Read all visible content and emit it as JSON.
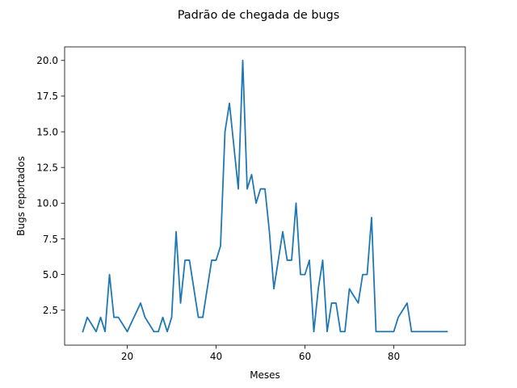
{
  "chart_data": {
    "type": "line",
    "title": "Padrão de chegada de bugs",
    "xlabel": "Meses",
    "ylabel": "Bugs reportados",
    "xlim": [
      5.9,
      96.1
    ],
    "ylim": [
      0.05,
      20.95
    ],
    "xticks": [
      20,
      40,
      60,
      80
    ],
    "xtick_labels": [
      "20",
      "40",
      "60",
      "80"
    ],
    "yticks": [
      2.5,
      5.0,
      7.5,
      10.0,
      12.5,
      15.0,
      17.5,
      20.0
    ],
    "ytick_labels": [
      "2.5",
      "5.0",
      "7.5",
      "10.0",
      "12.5",
      "15.0",
      "17.5",
      "20.0"
    ],
    "grid": false,
    "series": [
      {
        "color": "#1f77b4",
        "x": [
          10,
          11,
          12,
          13,
          14,
          15,
          16,
          17,
          18,
          19,
          20,
          21,
          22,
          23,
          24,
          25,
          26,
          27,
          28,
          29,
          30,
          31,
          32,
          33,
          34,
          35,
          36,
          37,
          38,
          39,
          40,
          41,
          42,
          43,
          44,
          45,
          46,
          47,
          48,
          49,
          50,
          51,
          52,
          53,
          54,
          55,
          56,
          57,
          58,
          59,
          60,
          61,
          62,
          63,
          64,
          65,
          66,
          67,
          68,
          69,
          70,
          71,
          72,
          73,
          74,
          75,
          76,
          77,
          78,
          79,
          80,
          81,
          82,
          83,
          84,
          85,
          86,
          87,
          88,
          89,
          90,
          91,
          92
        ],
        "y": [
          1,
          2,
          1.5,
          1,
          2,
          1,
          5,
          2,
          2,
          1.5,
          1,
          1.67,
          2.33,
          3,
          2,
          1.5,
          1,
          1,
          2,
          1,
          2,
          8,
          3,
          6,
          6,
          4,
          2,
          2,
          4,
          6,
          6,
          7,
          15,
          17,
          14,
          11,
          20,
          11,
          12,
          10,
          11,
          11,
          8,
          4,
          6,
          8,
          6,
          6,
          10,
          5,
          5,
          6,
          1,
          4,
          6,
          1,
          3,
          3,
          1,
          1,
          4,
          3.5,
          3,
          5,
          5,
          9,
          1,
          1,
          1,
          1,
          1,
          2,
          2.5,
          3,
          1,
          1,
          1,
          1,
          1,
          1,
          1,
          1,
          1
        ]
      }
    ]
  }
}
